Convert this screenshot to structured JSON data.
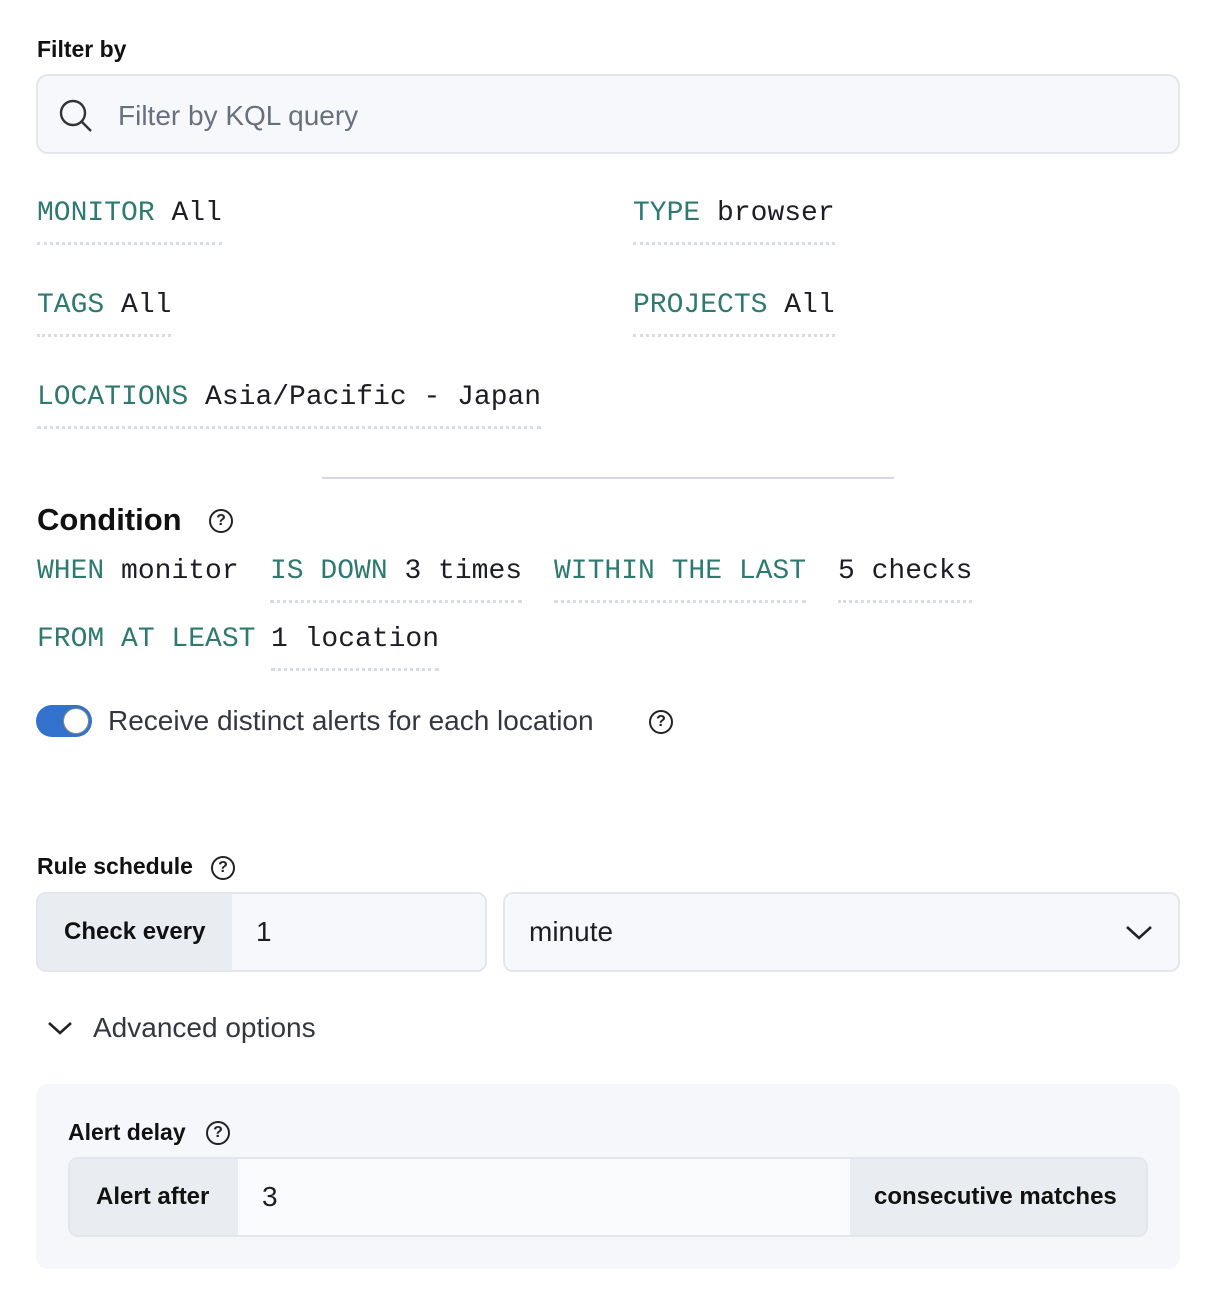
{
  "filter": {
    "label": "Filter by",
    "placeholder": "Filter by KQL query"
  },
  "expressions": {
    "monitor": {
      "key": "MONITOR",
      "value": "All"
    },
    "type": {
      "key": "TYPE",
      "value": "browser"
    },
    "tags": {
      "key": "TAGS",
      "value": "All"
    },
    "projects": {
      "key": "PROJECTS",
      "value": "All"
    },
    "locations": {
      "key": "LOCATIONS",
      "value": "Asia/Pacific - Japan"
    }
  },
  "condition": {
    "title": "Condition",
    "when": "WHEN",
    "monitor": "monitor",
    "is_down_key": "IS DOWN",
    "is_down_value": "3 times",
    "within_key": "WITHIN THE LAST",
    "within_value": "5 checks",
    "from_key": "FROM AT LEAST",
    "from_value": "1 location"
  },
  "toggle": {
    "label": "Receive distinct alerts for each location",
    "checked": true,
    "color": "#3271cc"
  },
  "schedule": {
    "title": "Rule schedule",
    "prepend": "Check every",
    "value": "1",
    "unit": "minute"
  },
  "advanced": {
    "label": "Advanced options",
    "expanded": true
  },
  "alert_delay": {
    "title": "Alert delay",
    "prepend": "Alert after",
    "value": "3",
    "append": "consecutive matches"
  }
}
